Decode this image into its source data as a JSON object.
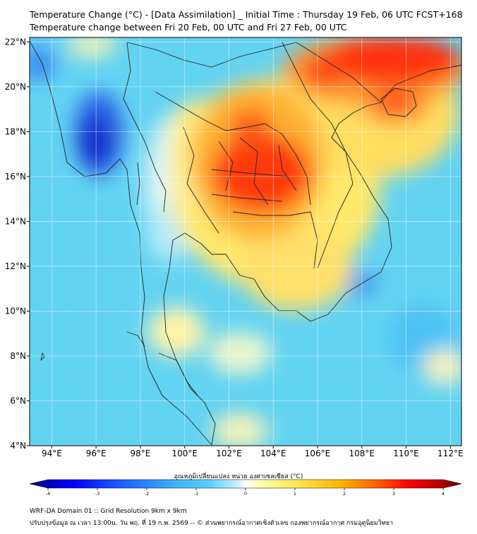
{
  "titles": {
    "line1": "Temperature Change (°C) - [Data Assimilation] _ Initial Time : Thursday 19 Feb, 06 UTC FCST+168",
    "line2": "Temperature change between Fri 20 Feb, 00 UTC and Fri 27 Feb, 00 UTC"
  },
  "map": {
    "lon_range": [
      93,
      112.5
    ],
    "lat_range": [
      4,
      22.2
    ],
    "lon_ticks": [
      "94°E",
      "96°E",
      "98°E",
      "100°E",
      "102°E",
      "104°E",
      "106°E",
      "108°E",
      "110°E",
      "112°E"
    ],
    "lon_tick_values": [
      94,
      96,
      98,
      100,
      102,
      104,
      106,
      108,
      110,
      112
    ],
    "lat_ticks": [
      "4°N",
      "6°N",
      "8°N",
      "10°N",
      "12°N",
      "14°N",
      "16°N",
      "18°N",
      "20°N",
      "22°N"
    ],
    "lat_tick_values": [
      4,
      6,
      8,
      10,
      12,
      14,
      16,
      18,
      20,
      22
    ],
    "grid": true
  },
  "colorbar": {
    "label": "อุณหภูมิเปลี่ยนแปลง หน่วย องศาเซลเซียส (°C)",
    "ticks": [
      "-4",
      "-3",
      "-2",
      "-1",
      "0",
      "1",
      "2",
      "3",
      "4"
    ],
    "range": [
      -4,
      4
    ],
    "colors": [
      "#00008b",
      "#0000ff",
      "#1e64ff",
      "#3cb4ff",
      "#5ad2ff",
      "#a0e6ff",
      "#ffffff",
      "#ffffa0",
      "#ffe650",
      "#ffb400",
      "#ff6400",
      "#ff0000",
      "#b40000",
      "#640000"
    ]
  },
  "footer": {
    "line1": "WRF-DA Domain 01 :: Grid Resolution 9km x 9km",
    "line2": "ปรับปรุงข้อมูล ณ เวลา 13:00น. วัน พฤ. ที่ 19 ก.พ. 2569 -- © ส่วนพยากรณ์อากาศเชิงตัวเลข กองพยากรณ์อากาศ กรมอุตุนิยมวิทยา"
  }
}
